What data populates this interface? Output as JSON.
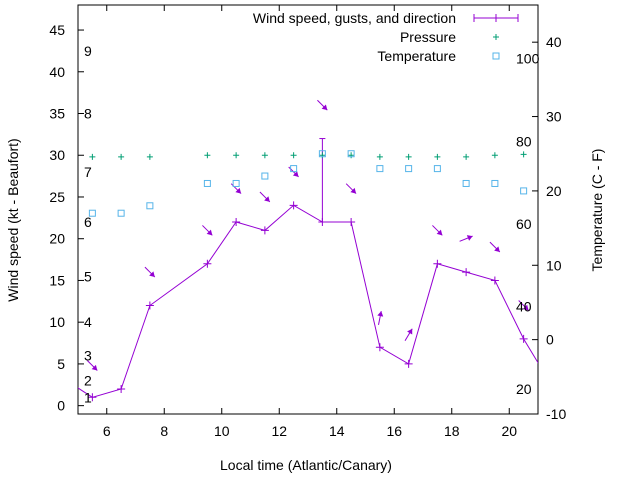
{
  "chart_data": {
    "type": "line",
    "title": "",
    "xlabel": "Local time (Atlantic/Canary)",
    "ylabel": "Wind speed (kt - Beaufort)",
    "y2label": "Temperature (C - F)",
    "xlim": [
      5,
      21
    ],
    "ylim": [
      -1,
      48
    ],
    "y2lim": [
      -10,
      45
    ],
    "x_ticks": [
      "6",
      "8",
      "10",
      "12",
      "14",
      "16",
      "18",
      "20"
    ],
    "y_ticks": [
      "0",
      "5",
      "10",
      "15",
      "20",
      "25",
      "30",
      "35",
      "40",
      "45"
    ],
    "y2_ticks": [
      "-10",
      "0",
      "10",
      "20",
      "30",
      "40"
    ],
    "beaufort_labels": [
      "1",
      "2",
      "3",
      "4",
      "5",
      "6",
      "7",
      "8",
      "9"
    ],
    "fahrenheit_labels": [
      "20",
      "40",
      "60",
      "80",
      "100"
    ],
    "legend_position": "top-right",
    "colors": {
      "wind": "#9400d3",
      "pressure": "#009e73",
      "temperature": "#56b4e9",
      "text": "#000000"
    },
    "series": [
      {
        "name": "Wind speed, gusts, and direction",
        "type": "line",
        "axis": "left",
        "x": [
          4.6,
          5.5,
          6.5,
          7.5,
          9.5,
          10.5,
          11.5,
          12.5,
          13.5,
          14.5,
          15.5,
          16.5,
          17.5,
          18.5,
          19.5,
          20.5,
          21.2
        ],
        "y": [
          3,
          1,
          2,
          12,
          17,
          22,
          21,
          24,
          22,
          22,
          7,
          5,
          17,
          16,
          15,
          8,
          4
        ],
        "gust": {
          "x": 13.5,
          "y": 32
        }
      },
      {
        "name": "Pressure",
        "type": "scatter",
        "axis": "left",
        "x": [
          5.5,
          6.5,
          7.5,
          9.5,
          10.5,
          11.5,
          12.5,
          13.5,
          14.5,
          15.5,
          16.5,
          17.5,
          18.5,
          19.5,
          20.5
        ],
        "y": [
          29.8,
          29.8,
          29.8,
          30.0,
          30.0,
          30.0,
          30.0,
          30.0,
          30.0,
          29.8,
          29.8,
          29.8,
          29.8,
          30.0,
          30.1
        ]
      },
      {
        "name": "Temperature",
        "type": "scatter",
        "axis": "right",
        "x": [
          5.5,
          6.5,
          7.5,
          9.5,
          10.5,
          11.5,
          12.5,
          13.5,
          14.5,
          15.5,
          16.5,
          17.5,
          18.5,
          19.5,
          20.5
        ],
        "y": [
          17,
          17,
          18,
          21,
          21,
          22,
          23,
          25,
          25,
          23,
          23,
          23,
          21,
          21,
          20
        ]
      }
    ],
    "wind_direction_arrows": [
      {
        "x": 5.5,
        "y": 4.8,
        "direction": "sw"
      },
      {
        "x": 7.5,
        "y": 16,
        "direction": "sw"
      },
      {
        "x": 9.5,
        "y": 21,
        "direction": "sw"
      },
      {
        "x": 10.5,
        "y": 26,
        "direction": "sw"
      },
      {
        "x": 11.5,
        "y": 25,
        "direction": "sw"
      },
      {
        "x": 12.5,
        "y": 28,
        "direction": "sw"
      },
      {
        "x": 13.5,
        "y": 36,
        "direction": "sw"
      },
      {
        "x": 14.5,
        "y": 26,
        "direction": "sw"
      },
      {
        "x": 15.5,
        "y": 10.5,
        "direction": "n"
      },
      {
        "x": 16.5,
        "y": 8.5,
        "direction": "nw"
      },
      {
        "x": 17.5,
        "y": 21,
        "direction": "sw"
      },
      {
        "x": 18.5,
        "y": 20,
        "direction": "w"
      },
      {
        "x": 19.5,
        "y": 19,
        "direction": "sw"
      },
      {
        "x": 20.5,
        "y": 12,
        "direction": "sw"
      }
    ]
  }
}
